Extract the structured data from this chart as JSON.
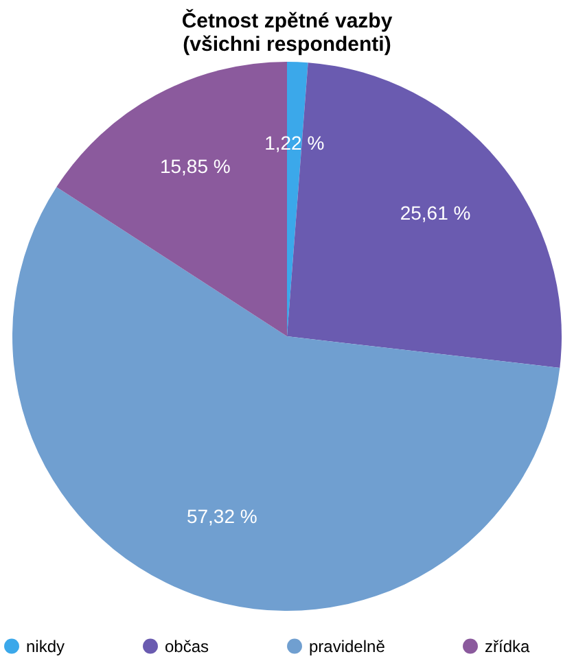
{
  "chart_data": {
    "type": "pie",
    "title": [
      "Četnost zpětné vazby",
      "(všichni respondenti)"
    ],
    "categories": [
      "nikdy",
      "občas",
      "pravidelně",
      "zřídka"
    ],
    "values": [
      1.22,
      25.61,
      57.32,
      15.85
    ],
    "value_labels": [
      "1,22 %",
      "25,61 %",
      "57,32 %",
      "15,85 %"
    ],
    "colors": [
      "#3ba8ea",
      "#6a5bb0",
      "#709fd0",
      "#8b5a9d"
    ],
    "legend": "bottom"
  }
}
